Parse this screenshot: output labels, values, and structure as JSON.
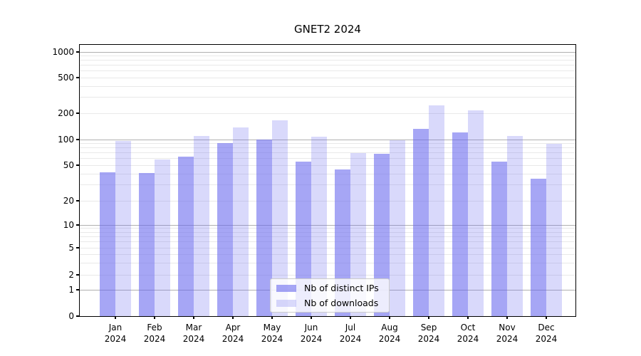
{
  "title": "GNET2 2024",
  "legend": {
    "items": [
      {
        "label": "Nb of distinct IPs",
        "swatch": "dark"
      },
      {
        "label": "Nb of downloads",
        "swatch": "light"
      }
    ]
  },
  "colors": {
    "bar_dark": "rgba(102,102,238,0.58)",
    "bar_light": "rgba(102,102,238,0.25)",
    "grid_major": "#b0b0b0",
    "grid_minor": "#e9e9e9"
  },
  "chart_data": {
    "type": "bar",
    "title": "GNET2 2024",
    "categories": [
      "Jan 2024",
      "Feb 2024",
      "Mar 2024",
      "Apr 2024",
      "May 2024",
      "Jun 2024",
      "Jul 2024",
      "Aug 2024",
      "Sep 2024",
      "Oct 2024",
      "Nov 2024",
      "Dec 2024"
    ],
    "series": [
      {
        "name": "Nb of distinct IPs",
        "values": [
          42,
          41,
          63,
          91,
          100,
          55,
          45,
          68,
          132,
          120,
          55,
          35
        ]
      },
      {
        "name": "Nb of downloads",
        "values": [
          96,
          58,
          110,
          138,
          167,
          108,
          70,
          99,
          243,
          215,
          110,
          89
        ]
      }
    ],
    "xlabel": "",
    "ylabel": "",
    "y_ticks": [
      0,
      1,
      2,
      5,
      10,
      20,
      50,
      100,
      200,
      500,
      1000
    ],
    "y_scale": "symlog",
    "ylim": [
      0,
      1400
    ],
    "grid": true,
    "legend_position": "lower center"
  }
}
